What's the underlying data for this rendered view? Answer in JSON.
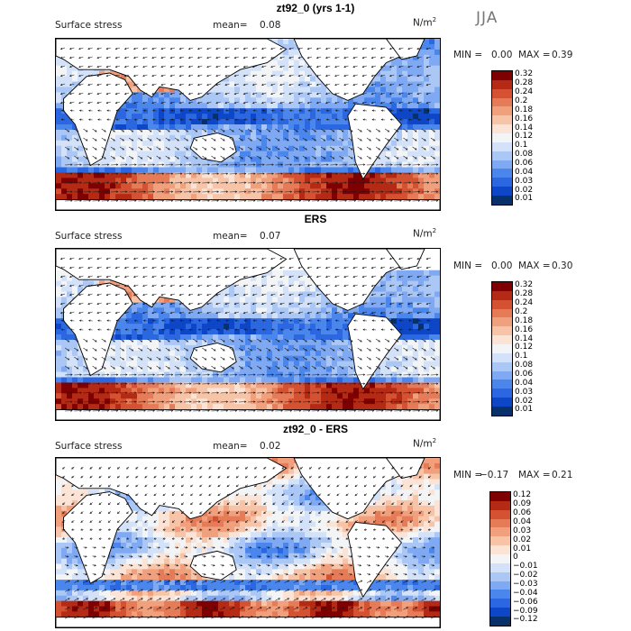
{
  "season": "JJA",
  "colors": {
    "pos_scale": [
      "#08306b",
      "#0d47c8",
      "#2a67e0",
      "#4a86ec",
      "#7fa9f2",
      "#aac7f5",
      "#d3e2f8",
      "#f2f4f6",
      "#fbe3d5",
      "#f7c4a8",
      "#f1a07e",
      "#e67b58",
      "#d45232",
      "#b52a14",
      "#7f0000"
    ],
    "diff_scale": [
      "#08306b",
      "#0d47c8",
      "#2a67e0",
      "#4a86ec",
      "#7fa9f2",
      "#aac7f5",
      "#d3e2f8",
      "#f2f4f6",
      "#fbe3d5",
      "#f7c4a8",
      "#f1a07e",
      "#e67b58",
      "#d45232",
      "#b52a14",
      "#7f0000"
    ],
    "land": "#ffffff",
    "arrow": "#1a1a1a"
  },
  "icons": [
    "wind-vector-arrow-icon"
  ],
  "chart_data": [
    {
      "type": "heatmap",
      "title": "zt92_0 (yrs 1-1)",
      "label_left": "Surface stress",
      "mean_label": "mean=",
      "mean_value": "0.08",
      "units": "N/m",
      "units_sup": "2",
      "min_label": "MIN =",
      "min_value": "0.00",
      "max_label": "MAX =",
      "max_value": "0.39",
      "colorbar_ticks": [
        "0.32",
        "0.28",
        "0.24",
        "0.2",
        "0.18",
        "0.16",
        "0.14",
        "0.12",
        "0.1",
        "0.08",
        "0.06",
        "0.04",
        "0.03",
        "0.02",
        "0.01"
      ],
      "vectors": true
    },
    {
      "type": "heatmap",
      "title": "ERS",
      "label_left": "Surface stress",
      "mean_label": "mean=",
      "mean_value": "0.07",
      "units": "N/m",
      "units_sup": "2",
      "min_label": "MIN =",
      "min_value": "0.00",
      "max_label": "MAX =",
      "max_value": "0.30",
      "colorbar_ticks": [
        "0.32",
        "0.28",
        "0.24",
        "0.2",
        "0.18",
        "0.16",
        "0.14",
        "0.12",
        "0.1",
        "0.08",
        "0.06",
        "0.04",
        "0.03",
        "0.02",
        "0.01"
      ],
      "vectors": true
    },
    {
      "type": "heatmap",
      "title": "zt92_0 - ERS",
      "label_left": "Surface stress",
      "mean_label": "mean=",
      "mean_value": "0.02",
      "units": "N/m",
      "units_sup": "2",
      "min_label": "MIN =",
      "min_value": "−0.17",
      "max_label": "MAX =",
      "max_value": "0.21",
      "colorbar_ticks": [
        "0.12",
        "0.09",
        "0.06",
        "0.04",
        "0.03",
        "0.02",
        "0.01",
        "0",
        "−0.01",
        "−0.02",
        "−0.03",
        "−0.04",
        "−0.06",
        "−0.09",
        "−0.12"
      ],
      "vectors": true
    }
  ]
}
